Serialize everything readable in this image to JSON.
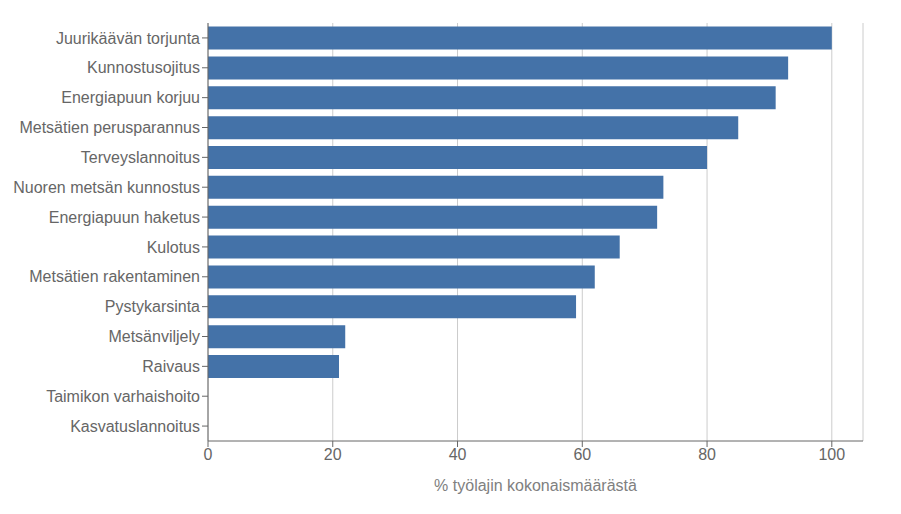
{
  "chart_data": {
    "type": "bar",
    "orientation": "horizontal",
    "categories": [
      "Kasvatuslannoitus",
      "Taimikon varhaishoito",
      "Raivaus",
      "Metsänviljely",
      "Pystykarsinta",
      "Metsätien rakentaminen",
      "Kulotus",
      "Energiapuun haketus",
      "Nuoren metsän kunnostus",
      "Terveyslannoitus",
      "Metsätien perusparannus",
      "Energiapuun korjuu",
      "Kunnostusojitus",
      "Juurikäävän torjunta"
    ],
    "values": [
      0,
      0,
      21,
      22,
      59,
      62,
      66,
      72,
      73,
      80,
      85,
      91,
      93,
      100
    ],
    "color": "#4472A8",
    "xlabel": "% työlajin kokonaismäärästä",
    "xlim": [
      0,
      105
    ],
    "xticks": [
      0,
      20,
      40,
      60,
      80,
      100
    ],
    "grid": true
  }
}
